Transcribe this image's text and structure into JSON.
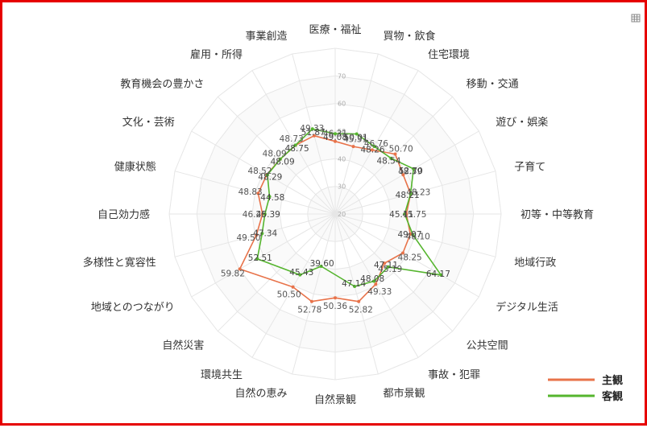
{
  "chart_data": {
    "type": "radar",
    "axes": [
      "医療・福祉",
      "買物・飲食",
      "住宅環境",
      "移動・交通",
      "遊び・娯楽",
      "子育て",
      "初等・中等教育",
      "地域行政",
      "デジタル生活",
      "公共空間",
      "事故・犯罪",
      "都市景観",
      "自然景観",
      "自然の恵み",
      "環境共生",
      "自然災害",
      "地域とのつながり",
      "多様性と寛容性",
      "自己効力感",
      "健康状態",
      "文化・芸術",
      "教育機会の豊かさ",
      "雇用・所得",
      "事業創造"
    ],
    "ring_ticks": [
      20,
      30,
      40,
      50,
      60,
      70
    ],
    "rmin": 20,
    "rmax": 80,
    "legend_position": "bottom-right",
    "series": [
      {
        "name": "主観",
        "color": "#e8734a",
        "values": [
          46.31,
          45.31,
          46.76,
          50.7,
          48.39,
          48.23,
          45.75,
          48.1,
          48.25,
          45.19,
          49.33,
          52.82,
          50.36,
          52.78,
          50.5,
          null,
          59.82,
          49.5,
          46.26,
          48.83,
          48.52,
          48.09,
          48.73,
          49.33
        ],
        "labels": [
          "46.31",
          "45.31",
          "46.76",
          "50.70",
          "48.39",
          "48.23",
          "45.75",
          "48.10",
          "48.25",
          "45.19",
          "49.33",
          "52.82",
          "50.36",
          "52.78",
          "50.50",
          "",
          "59.82",
          "49.50",
          "46.26",
          "48.83",
          "48.52",
          "48.09",
          "48.73",
          "49.33"
        ]
      },
      {
        "name": "客観",
        "color": "#55b52e",
        "values": [
          49.08,
          50.01,
          48.26,
          48.54,
          52.7,
          48.21,
          45.11,
          49.07,
          64.17,
          47.11,
          48.08,
          47.14,
          null,
          39.6,
          45.43,
          null,
          52.51,
          47.34,
          45.39,
          44.58,
          48.29,
          48.09,
          48.75,
          51.87
        ],
        "labels": [
          "49.08",
          "50.01",
          "48.26",
          "48.54",
          "52.70",
          "48.21",
          "45.11",
          "49.07",
          "64.17",
          "47.11",
          "48.08",
          "47.14",
          "",
          "39.60",
          "45.43",
          "",
          "52.51",
          "47.34",
          "45.39",
          "44.58",
          "48.29",
          "48.09",
          "48.75",
          "51.87"
        ]
      }
    ]
  },
  "toolbar": {
    "icon": "table-icon"
  }
}
